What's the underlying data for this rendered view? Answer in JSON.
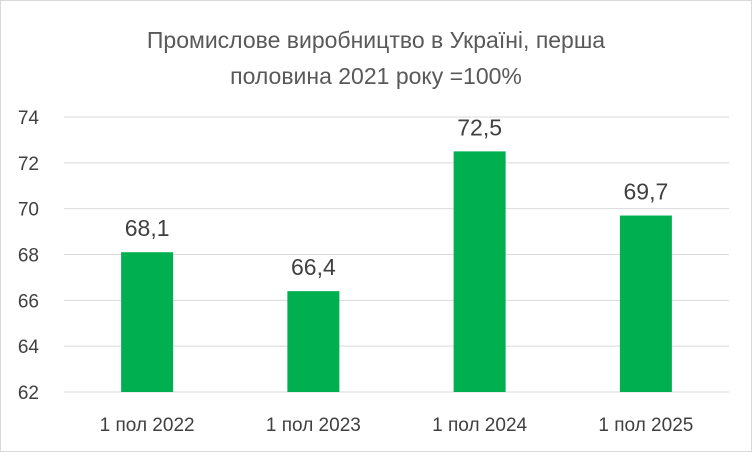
{
  "chart_data": {
    "type": "bar",
    "title_lines": [
      "Промислове виробництво в Україні, перша",
      "половина 2021 року =100%"
    ],
    "categories": [
      "1 пол 2022",
      "1 пол 2023",
      "1 пол 2024",
      "1 пол 2025"
    ],
    "values": [
      68.1,
      66.4,
      72.5,
      69.7
    ],
    "data_labels": [
      "68,1",
      "66,4",
      "72,5",
      "69,7"
    ],
    "yticks": [
      62,
      64,
      66,
      68,
      70,
      72,
      74
    ],
    "ylim": [
      62,
      74
    ],
    "grid": true,
    "legend": "none",
    "bar_color": "#00b050"
  }
}
